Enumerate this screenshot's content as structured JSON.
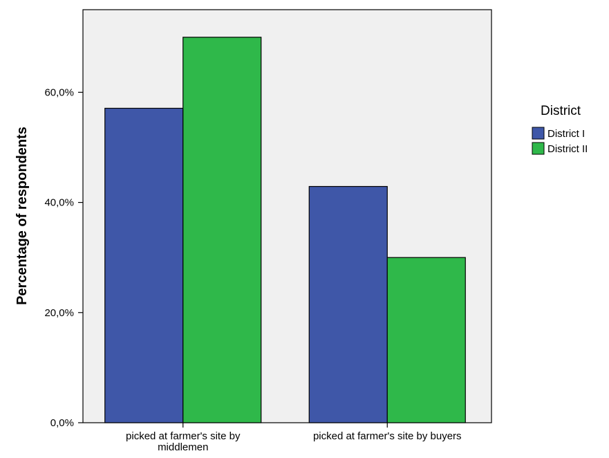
{
  "chart_data": {
    "type": "bar",
    "categories": [
      [
        "picked at farmer's site by",
        "middlemen"
      ],
      [
        "picked at farmer's site by buyers"
      ]
    ],
    "series": [
      {
        "name": "District I",
        "color": "#3f57a8",
        "values": [
          57.1,
          42.9
        ]
      },
      {
        "name": "District II",
        "color": "#2fb84a",
        "values": [
          70.0,
          30.0
        ]
      }
    ],
    "ylabel": "Percentage of respondents",
    "xlabel": "",
    "ylim": [
      0,
      75
    ],
    "yticks": [
      0,
      20,
      40,
      60
    ],
    "ytick_labels": [
      "0,0%",
      "20,0%",
      "40,0%",
      "60,0%"
    ],
    "legend": {
      "title": "District",
      "placement": "right"
    },
    "plot_background": "#f0f0f0",
    "grid": false
  }
}
